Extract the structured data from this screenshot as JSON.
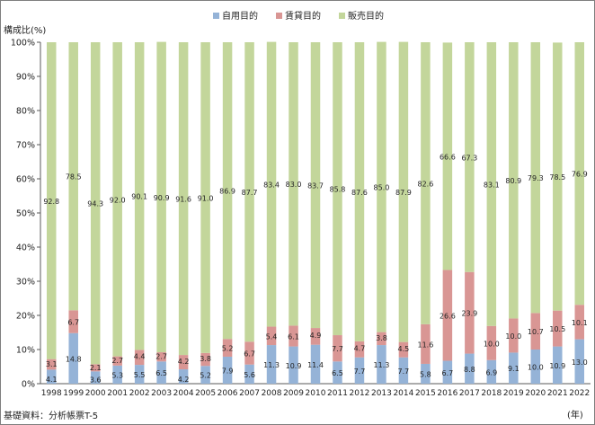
{
  "chart_data": {
    "type": "bar",
    "stacked": true,
    "ylabel": "構成比(%)",
    "xunit": "(年)",
    "source": "基礎資料：分析帳票T-5",
    "ylim": [
      0,
      100
    ],
    "yticks": [
      "0%",
      "10%",
      "20%",
      "30%",
      "40%",
      "50%",
      "60%",
      "70%",
      "80%",
      "90%",
      "100%"
    ],
    "grid": false,
    "legend_position": "top",
    "categories": [
      "1998",
      "1999",
      "2000",
      "2001",
      "2002",
      "2003",
      "2004",
      "2005",
      "2006",
      "2007",
      "2008",
      "2009",
      "2010",
      "2011",
      "2012",
      "2013",
      "2014",
      "2015",
      "2016",
      "2017",
      "2018",
      "2019",
      "2020",
      "2021",
      "2022"
    ],
    "series": [
      {
        "name": "自用目的",
        "color": "#95b3d7",
        "values": [
          4.1,
          14.8,
          3.6,
          5.3,
          5.5,
          6.5,
          4.2,
          5.2,
          7.9,
          5.6,
          11.3,
          10.9,
          11.4,
          6.5,
          7.7,
          11.3,
          7.7,
          5.8,
          6.7,
          8.8,
          6.9,
          9.1,
          10.0,
          10.9,
          13.0
        ]
      },
      {
        "name": "賃貸目的",
        "color": "#d99694",
        "values": [
          3.1,
          6.7,
          2.1,
          2.7,
          4.4,
          2.7,
          4.2,
          3.8,
          5.2,
          6.7,
          5.4,
          6.1,
          4.9,
          7.7,
          4.7,
          3.8,
          4.5,
          11.6,
          26.6,
          23.9,
          10.0,
          10.0,
          10.7,
          10.5,
          10.1
        ]
      },
      {
        "name": "販売目的",
        "color": "#c3d69b",
        "values": [
          92.8,
          78.5,
          94.3,
          92.0,
          90.1,
          90.9,
          91.6,
          91.0,
          86.9,
          87.7,
          83.4,
          83.0,
          83.7,
          85.8,
          87.6,
          85.0,
          87.9,
          82.6,
          66.6,
          67.3,
          83.1,
          80.9,
          79.3,
          78.5,
          76.9
        ]
      }
    ],
    "value_labels": [
      [
        "4.1",
        "14.8",
        "3.6",
        "5.3",
        "5.5",
        "6.5",
        "4.2",
        "5.2",
        "7.9",
        "5.6",
        "11.3",
        "10.9",
        "11.4",
        "6.5",
        "7.7",
        "11.3",
        "7.7",
        "5.8",
        "6.7",
        "8.8",
        "6.9",
        "9.1",
        "10.0",
        "10.9",
        "13.0"
      ],
      [
        "3.1",
        "6.7",
        "2.1",
        "2.7",
        "4.4",
        "2.7",
        "4.2",
        "3.8",
        "5.2",
        "6.7",
        "5.4",
        "6.1",
        "4.9",
        "7.7",
        "4.7",
        "3.8",
        "4.5",
        "11.6",
        "26.6",
        "23.9",
        "10.0",
        "10.0",
        "10.7",
        "10.5",
        "10.1"
      ],
      [
        "92.8",
        "78.5",
        "94.3",
        "92.0",
        "90.1",
        "90.9",
        "91.6",
        "91.0",
        "86.9",
        "87.7",
        "83.4",
        "83.0",
        "83.7",
        "85.8",
        "87.6",
        "85.0",
        "87.9",
        "82.6",
        "66.6",
        "67.3",
        "83.1",
        "80.9",
        "79.3",
        "78.5",
        "76.9"
      ]
    ]
  }
}
